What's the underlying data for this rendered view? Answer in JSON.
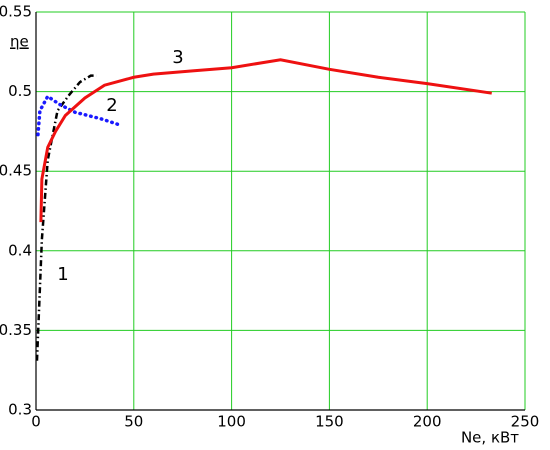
{
  "chart_data": {
    "type": "line",
    "x_label": "Ne, кВт",
    "y_label": "ηe",
    "xlim": [
      0,
      250
    ],
    "ylim": [
      0.3,
      0.55
    ],
    "xticks": [
      0,
      50,
      100,
      150,
      200,
      250
    ],
    "yticks": [
      0.3,
      0.35,
      0.4,
      0.45,
      0.5,
      0.55
    ],
    "grid": true,
    "annotations": [
      "1",
      "2",
      "3"
    ],
    "series": [
      {
        "name": "1",
        "color": "#000000",
        "style": "dashdot",
        "x": [
          0.5,
          3,
          6,
          11,
          17,
          22.5,
          28,
          31
        ],
        "values": [
          0.331,
          0.407,
          0.457,
          0.488,
          0.498,
          0.506,
          0.51,
          0.51
        ]
      },
      {
        "name": "2",
        "color": "#1a1aff",
        "style": "dotted",
        "x": [
          1,
          2,
          6,
          12,
          20,
          33,
          43
        ],
        "values": [
          0.473,
          0.488,
          0.497,
          0.492,
          0.487,
          0.483,
          0.479
        ]
      },
      {
        "name": "3",
        "color": "#ee1111",
        "style": "solid",
        "x": [
          2.5,
          3,
          6,
          10,
          15,
          25,
          35,
          50,
          60,
          80,
          100,
          125,
          150,
          175,
          200,
          233
        ],
        "values": [
          0.418,
          0.445,
          0.465,
          0.475,
          0.485,
          0.496,
          0.504,
          0.509,
          0.511,
          0.513,
          0.515,
          0.52,
          0.514,
          0.509,
          0.505,
          0.499
        ]
      }
    ]
  }
}
